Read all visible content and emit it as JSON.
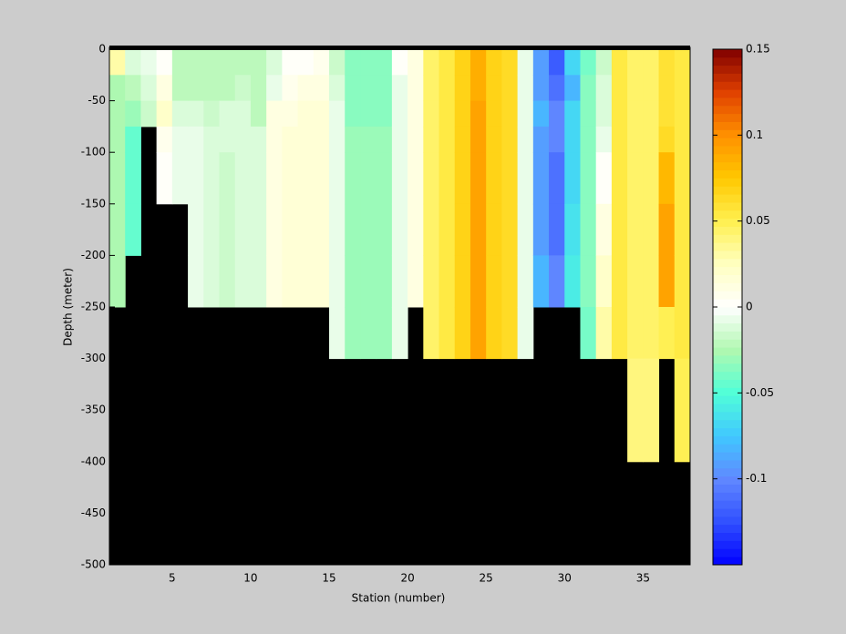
{
  "chart_data": {
    "type": "heatmap",
    "xlabel": "Station (number)",
    "ylabel": "Depth (meter)",
    "x_edges": [
      1,
      2,
      3,
      4,
      5,
      6,
      7,
      8,
      9,
      10,
      11,
      12,
      13,
      14,
      15,
      16,
      17,
      18,
      19,
      20,
      21,
      22,
      23,
      24,
      25,
      26,
      27,
      28,
      29,
      30,
      31,
      32,
      33,
      34,
      35,
      36,
      37,
      38
    ],
    "y_edges": [
      0,
      -25,
      -50,
      -75,
      -100,
      -150,
      -200,
      -250,
      -300,
      -400,
      -500
    ],
    "xlim": [
      1,
      38
    ],
    "xticks": [
      5,
      10,
      15,
      20,
      25,
      30,
      35
    ],
    "ylim": [
      -500,
      0
    ],
    "yticks": [
      -500,
      -450,
      -400,
      -350,
      -300,
      -250,
      -200,
      -150,
      -100,
      -50,
      0
    ],
    "clim": [
      -0.15,
      0.15
    ],
    "cticks": [
      -0.1,
      -0.05,
      0,
      0.05,
      0.1,
      0.15
    ],
    "colormap": [
      "#0000ff",
      "#3050ff",
      "#6088ff",
      "#40c8ff",
      "#50ffd8",
      "#b0f8b0",
      "#ffffff",
      "#ffffc0",
      "#fff050",
      "#ffc800",
      "#ff9000",
      "#e04000",
      "#800000"
    ],
    "colormap_steps": 64,
    "missing_color": "#000000",
    "values": [
      [
        0.03,
        -0.025,
        -0.025,
        -0.025,
        -0.025,
        -0.025,
        -0.025,
        null,
        null,
        null
      ],
      [
        -0.01,
        -0.02,
        -0.03,
        -0.045,
        -0.045,
        -0.045,
        null,
        null,
        null,
        null
      ],
      [
        -0.005,
        -0.01,
        -0.015,
        null,
        null,
        null,
        null,
        null,
        null,
        null
      ],
      [
        0,
        0.01,
        0.02,
        0.005,
        0,
        null,
        null,
        null,
        null,
        null
      ],
      [
        -0.02,
        -0.02,
        -0.01,
        -0.005,
        -0.005,
        null,
        null,
        null,
        null,
        null
      ],
      [
        -0.02,
        -0.02,
        -0.01,
        -0.005,
        -0.005,
        -0.005,
        -0.005,
        null,
        null,
        null
      ],
      [
        -0.02,
        -0.02,
        -0.015,
        -0.01,
        -0.01,
        -0.01,
        -0.01,
        null,
        null,
        null
      ],
      [
        -0.02,
        -0.02,
        -0.01,
        -0.01,
        -0.015,
        -0.015,
        -0.015,
        null,
        null,
        null
      ],
      [
        -0.02,
        -0.015,
        -0.01,
        -0.01,
        -0.01,
        -0.01,
        -0.01,
        null,
        null,
        null
      ],
      [
        -0.02,
        -0.02,
        -0.02,
        -0.01,
        -0.01,
        -0.01,
        -0.01,
        null,
        null,
        null
      ],
      [
        -0.01,
        -0.005,
        0.01,
        0.01,
        0.01,
        0.01,
        0.01,
        null,
        null,
        null
      ],
      [
        0,
        0.005,
        0.01,
        0.015,
        0.015,
        0.015,
        0.015,
        null,
        null,
        null
      ],
      [
        0,
        0.01,
        0.015,
        0.015,
        0.015,
        0.015,
        0.015,
        null,
        null,
        null
      ],
      [
        0.005,
        0.01,
        0.015,
        0.015,
        0.015,
        0.015,
        0.015,
        null,
        null,
        null
      ],
      [
        -0.015,
        -0.01,
        -0.005,
        -0.005,
        -0.005,
        -0.005,
        -0.005,
        -0.005,
        null,
        null
      ],
      [
        -0.035,
        -0.035,
        -0.035,
        -0.03,
        -0.03,
        -0.03,
        -0.03,
        -0.03,
        null,
        null
      ],
      [
        -0.035,
        -0.035,
        -0.035,
        -0.03,
        -0.03,
        -0.03,
        -0.03,
        -0.03,
        null,
        null
      ],
      [
        -0.035,
        -0.035,
        -0.035,
        -0.03,
        -0.03,
        -0.03,
        -0.03,
        -0.03,
        null,
        null
      ],
      [
        0,
        -0.005,
        -0.005,
        -0.005,
        -0.005,
        -0.005,
        -0.005,
        -0.005,
        null,
        null
      ],
      [
        0.01,
        0.01,
        0.01,
        0.01,
        0.01,
        0.01,
        0.01,
        null,
        null,
        null
      ],
      [
        0.045,
        0.045,
        0.045,
        0.045,
        0.045,
        0.045,
        0.045,
        0.045,
        null,
        null
      ],
      [
        0.055,
        0.055,
        0.055,
        0.055,
        0.055,
        0.055,
        0.055,
        0.055,
        null,
        null
      ],
      [
        0.07,
        0.07,
        0.07,
        0.07,
        0.07,
        0.07,
        0.07,
        0.07,
        null,
        null
      ],
      [
        0.085,
        0.085,
        0.09,
        0.09,
        0.09,
        0.09,
        0.09,
        0.09,
        null,
        null
      ],
      [
        0.07,
        0.07,
        0.07,
        0.07,
        0.07,
        0.07,
        0.07,
        0.07,
        null,
        null
      ],
      [
        0.065,
        0.065,
        0.065,
        0.065,
        0.065,
        0.065,
        0.065,
        0.065,
        null,
        null
      ],
      [
        -0.005,
        -0.005,
        -0.005,
        -0.005,
        -0.005,
        -0.005,
        -0.005,
        -0.005,
        null,
        null
      ],
      [
        -0.09,
        -0.09,
        -0.08,
        -0.09,
        -0.09,
        -0.09,
        -0.08,
        null,
        null,
        null
      ],
      [
        -0.12,
        -0.11,
        -0.1,
        -0.1,
        -0.11,
        -0.11,
        -0.1,
        null,
        null,
        null
      ],
      [
        -0.07,
        -0.08,
        -0.07,
        -0.07,
        -0.07,
        -0.065,
        -0.06,
        null,
        null,
        null
      ],
      [
        -0.04,
        -0.035,
        -0.035,
        -0.035,
        -0.035,
        -0.035,
        -0.035,
        -0.04,
        null,
        null
      ],
      [
        -0.015,
        -0.01,
        -0.01,
        -0.005,
        0,
        0.01,
        0.02,
        0.03,
        null,
        null
      ],
      [
        0.055,
        0.055,
        0.055,
        0.055,
        0.055,
        0.055,
        0.055,
        0.055,
        null,
        null
      ],
      [
        0.045,
        0.045,
        0.045,
        0.045,
        0.045,
        0.045,
        0.045,
        0.045,
        0.04,
        null
      ],
      [
        0.045,
        0.045,
        0.045,
        0.045,
        0.045,
        0.045,
        0.045,
        0.045,
        0.04,
        null
      ],
      [
        0.06,
        0.06,
        0.06,
        0.065,
        0.08,
        0.09,
        0.09,
        0.05,
        null,
        null
      ],
      [
        0.055,
        0.055,
        0.055,
        0.055,
        0.055,
        0.055,
        0.055,
        0.055,
        0.05,
        null
      ]
    ]
  }
}
